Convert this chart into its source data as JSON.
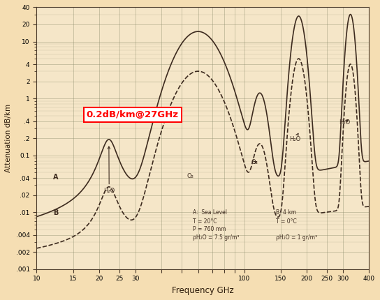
{
  "title": "",
  "xlabel": "Frequency GHz",
  "ylabel": "Attenuation dB/km",
  "bg_color": "#f5deb3",
  "plot_bg_color": "#f5e6c8",
  "annotation_box_text": "0.2dB/km@27GHz",
  "annotation_box_color": "red",
  "annotation_box_bg": "white",
  "curve_color": "#3d2b1f",
  "xmin": 10,
  "xmax": 400,
  "ymin": 0.001,
  "ymax": 40,
  "legend_A": "A:  Sea Level",
  "legend_B": "B: 4 km",
  "legend_A_detail": "T = 20°C\nP = 760 mm\nρH₂O = 7.5 gr/m³",
  "legend_B_detail": "T = 0°C\n―ρH₂O = 1 gr/m³"
}
